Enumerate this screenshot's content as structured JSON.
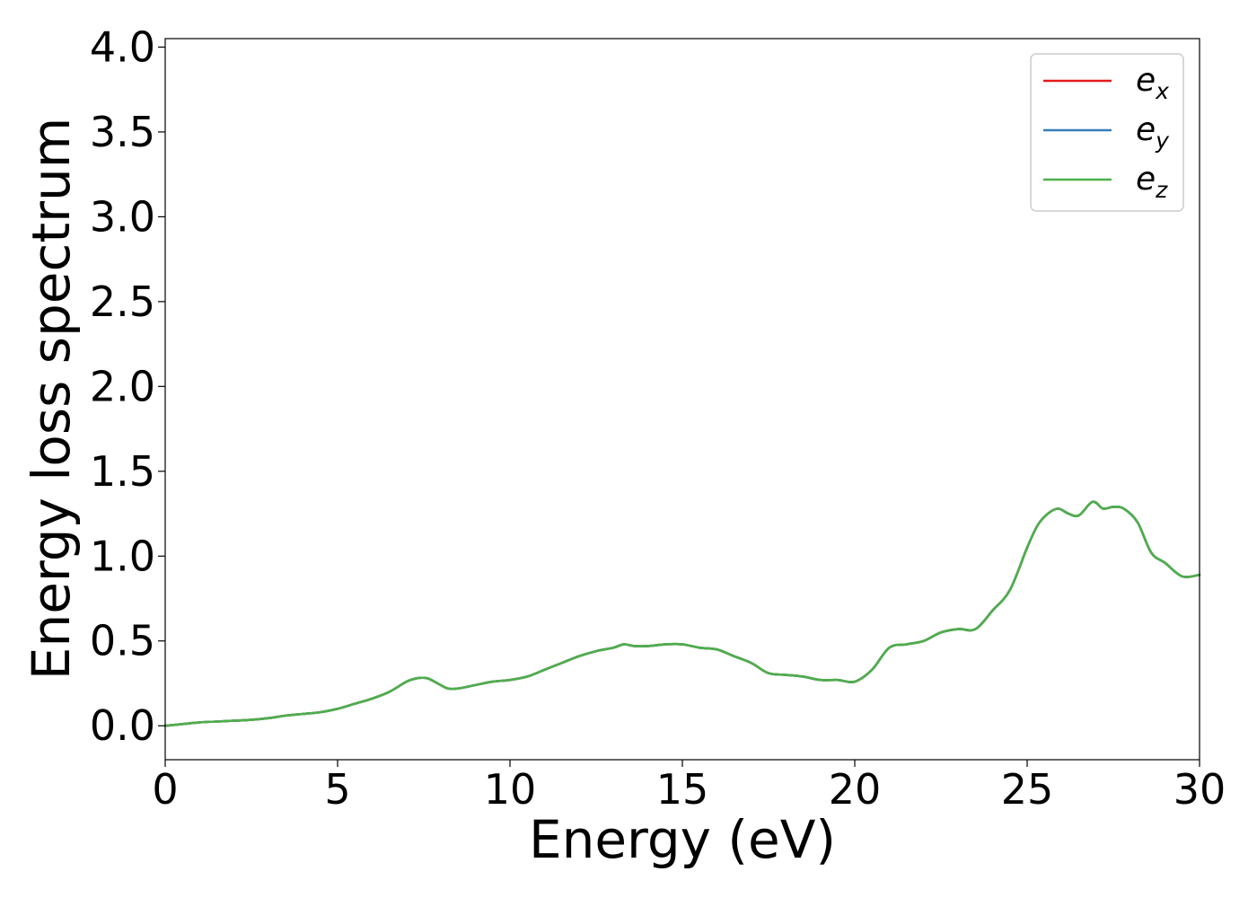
{
  "chart_data": {
    "type": "line",
    "title": "",
    "xlabel": "Energy (eV)",
    "ylabel": "Energy loss spectrum",
    "xlim": [
      0,
      30
    ],
    "ylim": [
      -0.2,
      4.05
    ],
    "x_ticks": [
      0,
      5,
      10,
      15,
      20,
      25,
      30
    ],
    "x_tick_labels": [
      "0",
      "5",
      "10",
      "15",
      "20",
      "25",
      "30"
    ],
    "y_ticks": [
      0.0,
      0.5,
      1.0,
      1.5,
      2.0,
      2.5,
      3.0,
      3.5,
      4.0
    ],
    "y_tick_labels": [
      "0.0",
      "0.5",
      "1.0",
      "1.5",
      "2.0",
      "2.5",
      "3.0",
      "3.5",
      "4.0"
    ],
    "grid": false,
    "legend_position": "top-right",
    "x": [
      0,
      0.5,
      1.0,
      1.5,
      2.0,
      2.5,
      3.0,
      3.5,
      4.0,
      4.5,
      5.0,
      5.5,
      6.0,
      6.5,
      7.0,
      7.3,
      7.6,
      7.9,
      8.2,
      8.5,
      9.0,
      9.5,
      10.0,
      10.5,
      11.0,
      11.5,
      12.0,
      12.5,
      13.0,
      13.3,
      13.6,
      14.0,
      14.5,
      15.0,
      15.5,
      16.0,
      16.5,
      17.0,
      17.5,
      18.0,
      18.5,
      19.0,
      19.5,
      20.0,
      20.5,
      21.0,
      21.5,
      22.0,
      22.5,
      23.0,
      23.5,
      24.0,
      24.5,
      25.0,
      25.3,
      25.6,
      25.9,
      26.2,
      26.5,
      26.9,
      27.2,
      27.5,
      27.8,
      28.2,
      28.6,
      29.0,
      29.5,
      30.0
    ],
    "series": [
      {
        "name": "e_x",
        "label_base": "e",
        "label_sub": "x",
        "color": "#e41a1c",
        "y": [
          0.0,
          0.01,
          0.02,
          0.025,
          0.03,
          0.035,
          0.045,
          0.06,
          0.07,
          0.08,
          0.1,
          0.13,
          0.16,
          0.2,
          0.26,
          0.28,
          0.28,
          0.25,
          0.22,
          0.22,
          0.24,
          0.26,
          0.27,
          0.29,
          0.33,
          0.37,
          0.41,
          0.44,
          0.46,
          0.48,
          0.47,
          0.47,
          0.48,
          0.48,
          0.46,
          0.45,
          0.41,
          0.37,
          0.31,
          0.3,
          0.29,
          0.27,
          0.27,
          0.26,
          0.33,
          0.46,
          0.48,
          0.5,
          0.55,
          0.57,
          0.57,
          0.68,
          0.8,
          1.05,
          1.18,
          1.25,
          1.28,
          1.25,
          1.24,
          1.32,
          1.28,
          1.29,
          1.28,
          1.2,
          1.02,
          0.96,
          0.88,
          0.89
        ]
      },
      {
        "name": "e_y",
        "label_base": "e",
        "label_sub": "y",
        "color": "#377eb8",
        "y": [
          0.0,
          0.01,
          0.02,
          0.025,
          0.03,
          0.035,
          0.045,
          0.06,
          0.07,
          0.08,
          0.1,
          0.13,
          0.16,
          0.2,
          0.26,
          0.28,
          0.28,
          0.25,
          0.22,
          0.22,
          0.24,
          0.26,
          0.27,
          0.29,
          0.33,
          0.37,
          0.41,
          0.44,
          0.46,
          0.48,
          0.47,
          0.47,
          0.48,
          0.48,
          0.46,
          0.45,
          0.41,
          0.37,
          0.31,
          0.3,
          0.29,
          0.27,
          0.27,
          0.26,
          0.33,
          0.46,
          0.48,
          0.5,
          0.55,
          0.57,
          0.57,
          0.68,
          0.8,
          1.05,
          1.18,
          1.25,
          1.28,
          1.25,
          1.24,
          1.32,
          1.28,
          1.29,
          1.28,
          1.2,
          1.02,
          0.96,
          0.88,
          0.89
        ]
      },
      {
        "name": "e_z",
        "label_base": "e",
        "label_sub": "z",
        "color": "#4daf4a",
        "y": [
          0.0,
          0.01,
          0.02,
          0.025,
          0.03,
          0.035,
          0.045,
          0.06,
          0.07,
          0.08,
          0.1,
          0.13,
          0.16,
          0.2,
          0.26,
          0.28,
          0.28,
          0.25,
          0.22,
          0.22,
          0.24,
          0.26,
          0.27,
          0.29,
          0.33,
          0.37,
          0.41,
          0.44,
          0.46,
          0.48,
          0.47,
          0.47,
          0.48,
          0.48,
          0.46,
          0.45,
          0.41,
          0.37,
          0.31,
          0.3,
          0.29,
          0.27,
          0.27,
          0.26,
          0.33,
          0.46,
          0.48,
          0.5,
          0.55,
          0.57,
          0.57,
          0.68,
          0.8,
          1.05,
          1.18,
          1.25,
          1.28,
          1.25,
          1.24,
          1.32,
          1.28,
          1.29,
          1.28,
          1.2,
          1.02,
          0.96,
          0.88,
          0.89
        ]
      }
    ]
  }
}
